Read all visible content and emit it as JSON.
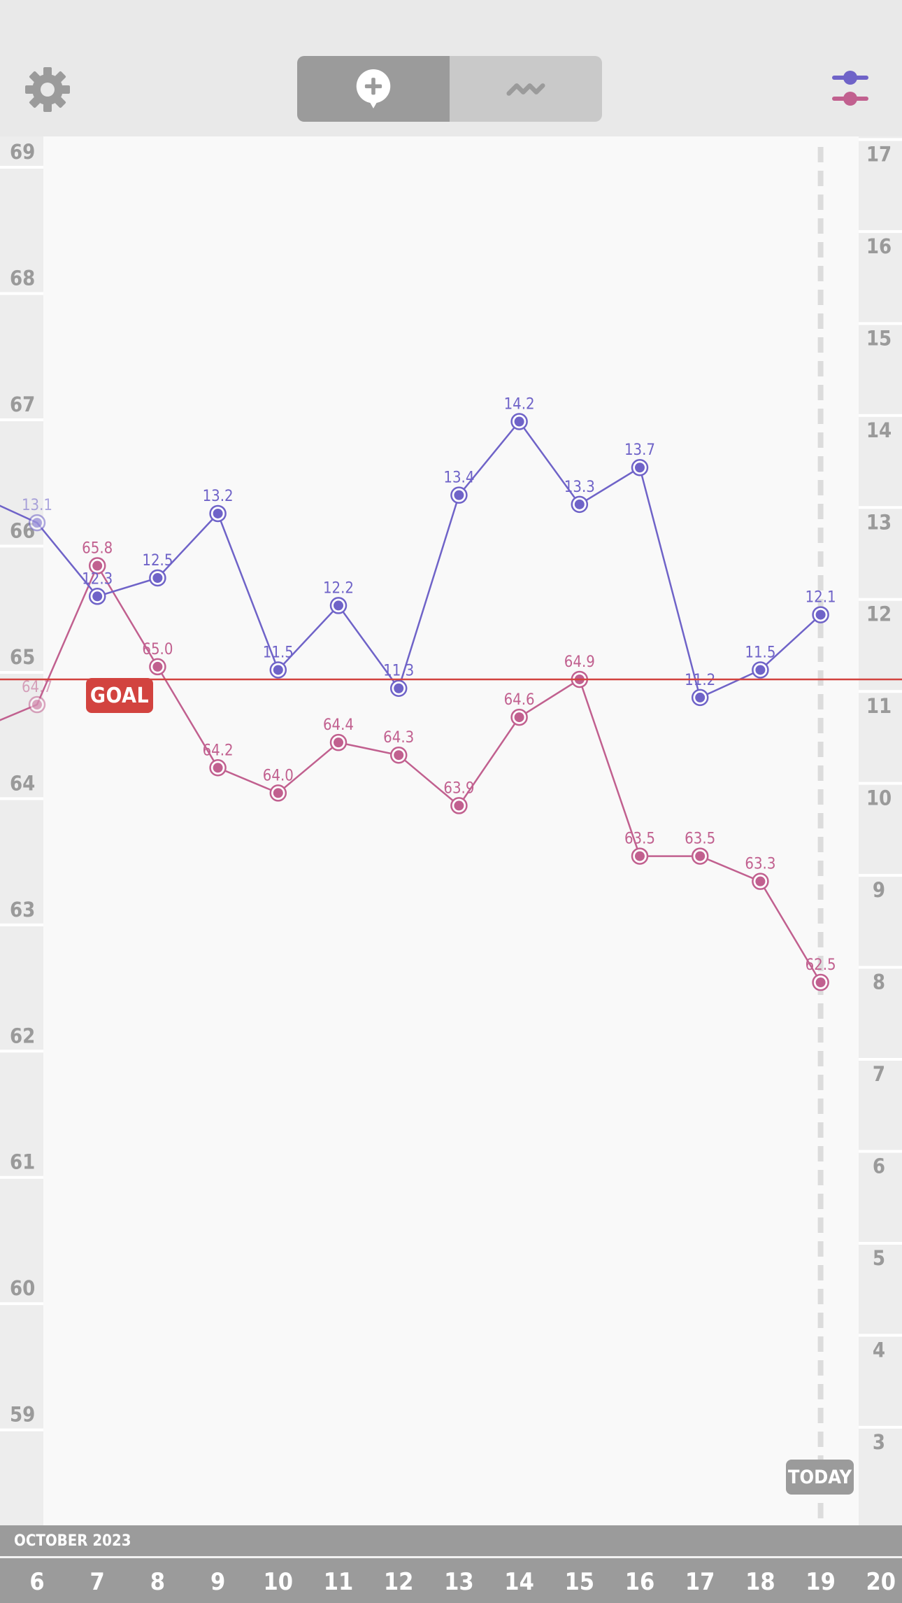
{
  "header": {
    "settings_icon": "gear-icon",
    "segments": [
      {
        "icon": "add-entry-icon",
        "active": true
      },
      {
        "icon": "trend-icon",
        "active": false
      }
    ],
    "filter_icon": "series-filter-icon"
  },
  "colors": {
    "series_blue": "#6f63c8",
    "series_pink": "#c1608f",
    "goal_red": "#d2433f"
  },
  "goal": {
    "label": "GOAL",
    "value": 64.9
  },
  "today": {
    "label": "TODAY",
    "day": 19
  },
  "month_label": "OCTOBER 2023",
  "chart_data": {
    "type": "line",
    "x": [
      5,
      6,
      7,
      8,
      9,
      10,
      11,
      12,
      13,
      14,
      15,
      16,
      17,
      18,
      19
    ],
    "x_tick_labels": [
      "6",
      "7",
      "8",
      "9",
      "10",
      "11",
      "12",
      "13",
      "14",
      "15",
      "16",
      "17",
      "18",
      "19",
      "20"
    ],
    "left_axis": {
      "ylim": [
        58.2,
        69.2
      ],
      "ticks": [
        59,
        60,
        61,
        62,
        63,
        64,
        65,
        66,
        67,
        68,
        69
      ]
    },
    "right_axis": {
      "ylim": [
        2.2,
        17.3
      ],
      "ticks": [
        3,
        4,
        5,
        6,
        7,
        8,
        9,
        10,
        11,
        12,
        13,
        14,
        15,
        16,
        17
      ]
    },
    "series": [
      {
        "axis": "left",
        "color": "#c1608f",
        "values": [
          64.5,
          64.7,
          65.8,
          65.0,
          64.2,
          64.0,
          64.4,
          64.3,
          63.9,
          64.6,
          64.9,
          63.5,
          63.5,
          63.3,
          62.5
        ],
        "labels": [
          null,
          "64.7",
          "65.8",
          "65.0",
          "64.2",
          "64.0",
          "64.4",
          "64.3",
          "63.9",
          "64.6",
          "64.9",
          "63.5",
          "63.5",
          "63.3",
          "62.5"
        ]
      },
      {
        "axis": "right",
        "color": "#6f63c8",
        "values": [
          13.4,
          13.1,
          12.3,
          12.5,
          13.2,
          11.5,
          12.2,
          11.3,
          13.4,
          14.2,
          13.3,
          13.7,
          11.2,
          11.5,
          12.1
        ],
        "labels": [
          null,
          "13.1",
          "12.3",
          "12.5",
          "13.2",
          "11.5",
          "12.2",
          "11.3",
          "13.4",
          "14.2",
          "13.3",
          "13.7",
          "11.2",
          "11.5",
          "12.1"
        ]
      }
    ]
  }
}
